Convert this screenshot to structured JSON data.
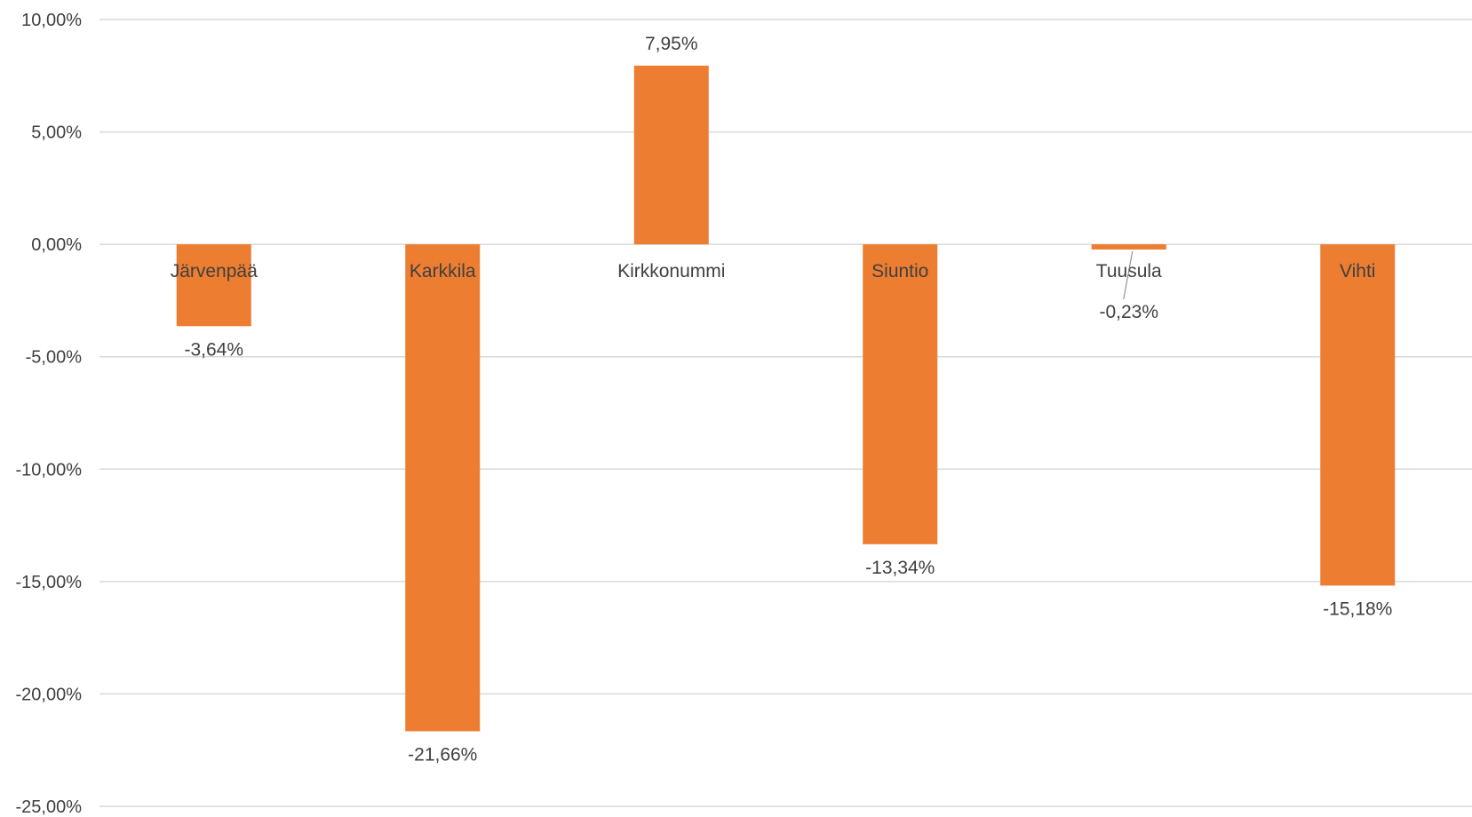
{
  "chart_data": {
    "type": "bar",
    "categories": [
      "Järvenpää",
      "Karkkila",
      "Kirkkonummi",
      "Siuntio",
      "Tuusula",
      "Vihti"
    ],
    "series": [
      {
        "values": [
          -3.64,
          -21.66,
          7.95,
          -13.34,
          -0.23,
          -15.18
        ],
        "data_labels": [
          "-3,64%",
          "-21,66%",
          "7,95%",
          "-13,34%",
          "-0,23%",
          "-15,18%"
        ],
        "color": "#ed7d31"
      }
    ],
    "ylim": [
      -25,
      10
    ],
    "y_ticks": [
      10,
      5,
      0,
      -5,
      -10,
      -15,
      -20,
      -25
    ],
    "y_tick_labels": [
      "10,00%",
      "5,00%",
      "0,00%",
      "-5,00%",
      "-10,00%",
      "-15,00%",
      "-20,00%",
      "-25,00%"
    ],
    "grid": true,
    "legend": "none",
    "category_labels_position": "at-zero-axis",
    "gridline_color": "#d9d9d9",
    "text_color": "#404040"
  }
}
